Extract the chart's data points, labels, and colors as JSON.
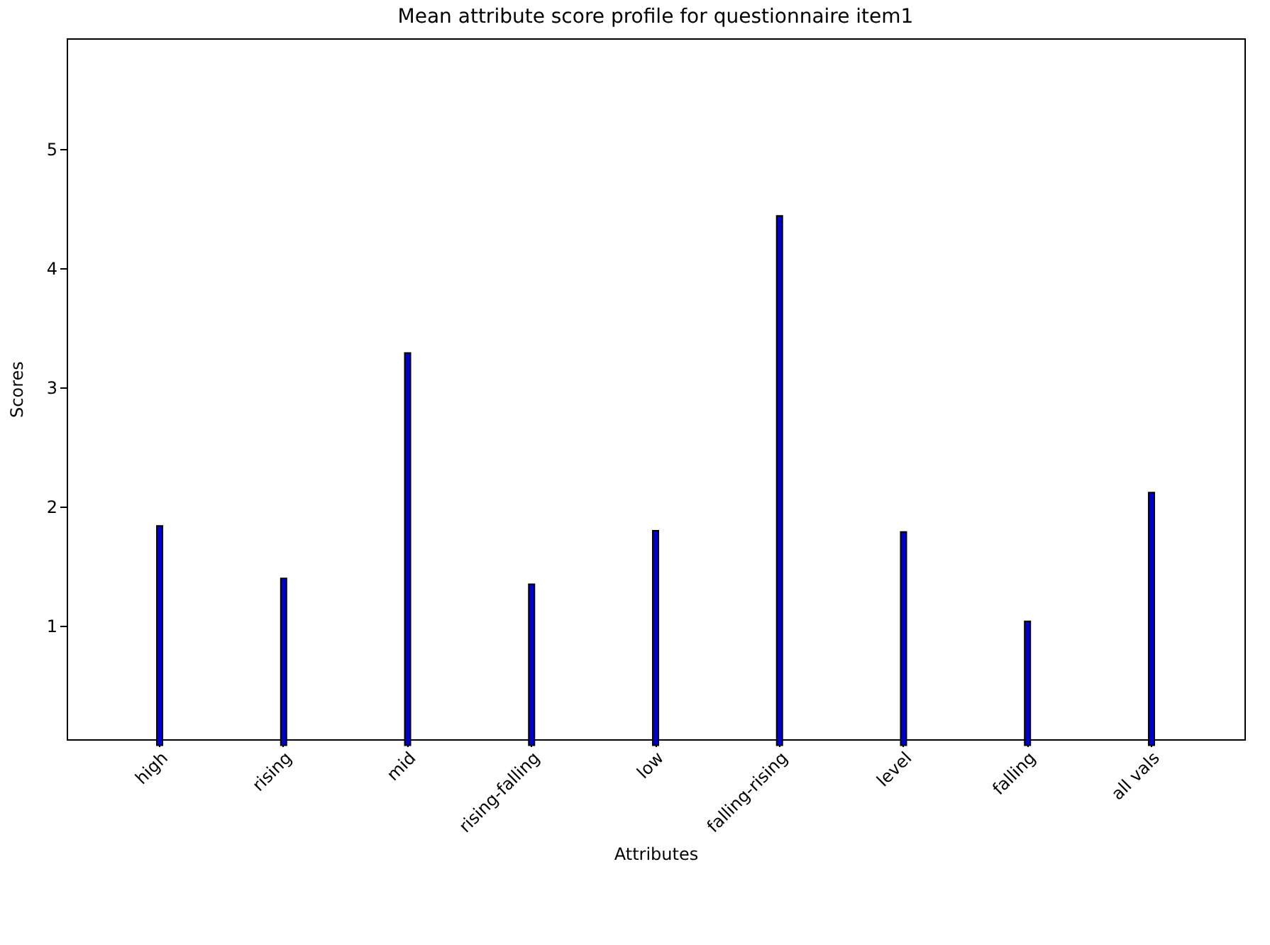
{
  "chart_data": {
    "type": "bar",
    "title": "Mean attribute score profile for questionnaire item1",
    "xlabel": "Attributes",
    "ylabel": "Scores",
    "categories": [
      "high",
      "rising",
      "mid",
      "rising-falling",
      "low",
      "falling-rising",
      "level",
      "falling",
      "all vals"
    ],
    "values": [
      1.84,
      1.4,
      3.29,
      1.35,
      1.8,
      4.44,
      1.79,
      1.04,
      2.12
    ],
    "color": "#0000cc",
    "ylim": [
      0.05,
      5.93
    ],
    "yticks": [
      1,
      2,
      3,
      4,
      5
    ],
    "grid": false
  }
}
